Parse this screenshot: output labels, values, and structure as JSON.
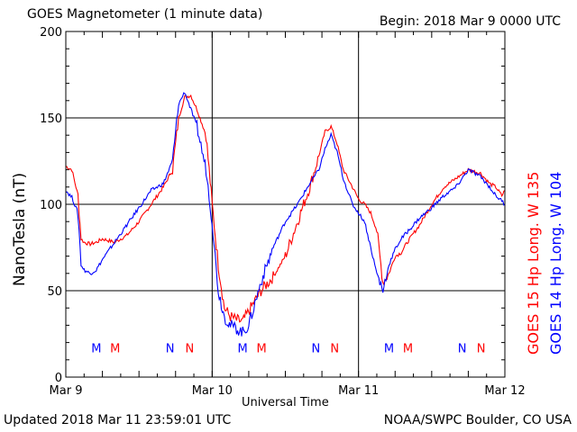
{
  "header": {
    "title": "GOES Magnetometer (1 minute data)",
    "begin": "Begin:  2018 Mar 9 0000 UTC"
  },
  "footer": {
    "updated": "Updated 2018 Mar 11 23:59:01 UTC",
    "credit": "NOAA/SWPC Boulder, CO USA"
  },
  "colors": {
    "goes15": "#ff0000",
    "goes14": "#0000ff"
  },
  "chart_data": {
    "type": "line",
    "xlabel": "Universal Time",
    "ylabel": "NanoTesla (nT)",
    "xlim": [
      0,
      72
    ],
    "ylim": [
      0,
      200
    ],
    "yticks": [
      0,
      50,
      100,
      150,
      200
    ],
    "xticks": [
      {
        "value": 0,
        "label": "Mar 9"
      },
      {
        "value": 24,
        "label": "Mar 10"
      },
      {
        "value": 48,
        "label": "Mar 11"
      },
      {
        "value": 72,
        "label": "Mar 12"
      }
    ],
    "grid": true,
    "legend": {
      "position": "right-vertical"
    },
    "series": [
      {
        "name": "GOES 15 Hp  Long. W 135",
        "color": "#ff0000",
        "x_hours": [
          0,
          1,
          2,
          2.5,
          3,
          4,
          5,
          6,
          8,
          10,
          12,
          14,
          16,
          17.5,
          18.5,
          19.5,
          20.5,
          21.5,
          23,
          24,
          25,
          26,
          27,
          28,
          29,
          30,
          32,
          34,
          36,
          38,
          40,
          41.5,
          42.5,
          43.5,
          44.5,
          45.5,
          47,
          48,
          49,
          50,
          51,
          52,
          53,
          54,
          55,
          56,
          58,
          60,
          62,
          64,
          66,
          68,
          69.5,
          70.5,
          71.5,
          72
        ],
        "values": [
          122,
          120,
          105,
          80,
          78,
          77,
          78,
          80,
          78,
          82,
          90,
          100,
          110,
          120,
          150,
          162,
          163,
          155,
          140,
          100,
          65,
          40,
          35,
          33,
          32,
          38,
          50,
          58,
          70,
          90,
          110,
          128,
          142,
          145,
          135,
          120,
          110,
          103,
          100,
          95,
          85,
          55,
          60,
          70,
          72,
          78,
          88,
          100,
          110,
          115,
          120,
          118,
          112,
          110,
          105,
          108
        ]
      },
      {
        "name": "GOES 14 Hp  Long. W 104",
        "color": "#0000ff",
        "x_hours": [
          0,
          1,
          2,
          2.5,
          3,
          4,
          5,
          6,
          8,
          10,
          12,
          14,
          16,
          17.5,
          18.5,
          19.5,
          20.5,
          21.5,
          23,
          24,
          25,
          26,
          27,
          28,
          29,
          30,
          32,
          34,
          36,
          38,
          40,
          41.5,
          42.5,
          43.5,
          44.5,
          45.5,
          47,
          48,
          49,
          50,
          51,
          52,
          53,
          54,
          55,
          56,
          58,
          60,
          62,
          64,
          66,
          68,
          69.5,
          70.5,
          71.5,
          72
        ],
        "values": [
          108,
          104,
          95,
          65,
          62,
          60,
          62,
          68,
          78,
          88,
          98,
          108,
          112,
          125,
          158,
          165,
          155,
          145,
          120,
          90,
          50,
          35,
          30,
          28,
          26,
          30,
          55,
          75,
          90,
          100,
          112,
          120,
          132,
          140,
          130,
          115,
          100,
          95,
          90,
          75,
          60,
          50,
          65,
          74,
          80,
          84,
          92,
          98,
          105,
          110,
          120,
          116,
          110,
          105,
          102,
          100
        ]
      }
    ],
    "annotations": [
      {
        "text": "M",
        "x": 5.0,
        "color": "#0000ff"
      },
      {
        "text": "M",
        "x": 8.1,
        "color": "#ff0000"
      },
      {
        "text": "N",
        "x": 17.1,
        "color": "#0000ff"
      },
      {
        "text": "N",
        "x": 20.3,
        "color": "#ff0000"
      },
      {
        "text": "M",
        "x": 29.0,
        "color": "#0000ff"
      },
      {
        "text": "M",
        "x": 32.1,
        "color": "#ff0000"
      },
      {
        "text": "N",
        "x": 41.0,
        "color": "#0000ff"
      },
      {
        "text": "N",
        "x": 44.1,
        "color": "#ff0000"
      },
      {
        "text": "M",
        "x": 53.0,
        "color": "#0000ff"
      },
      {
        "text": "M",
        "x": 56.1,
        "color": "#ff0000"
      },
      {
        "text": "N",
        "x": 65.0,
        "color": "#0000ff"
      },
      {
        "text": "N",
        "x": 68.1,
        "color": "#ff0000"
      }
    ],
    "annotation_y": 17
  }
}
